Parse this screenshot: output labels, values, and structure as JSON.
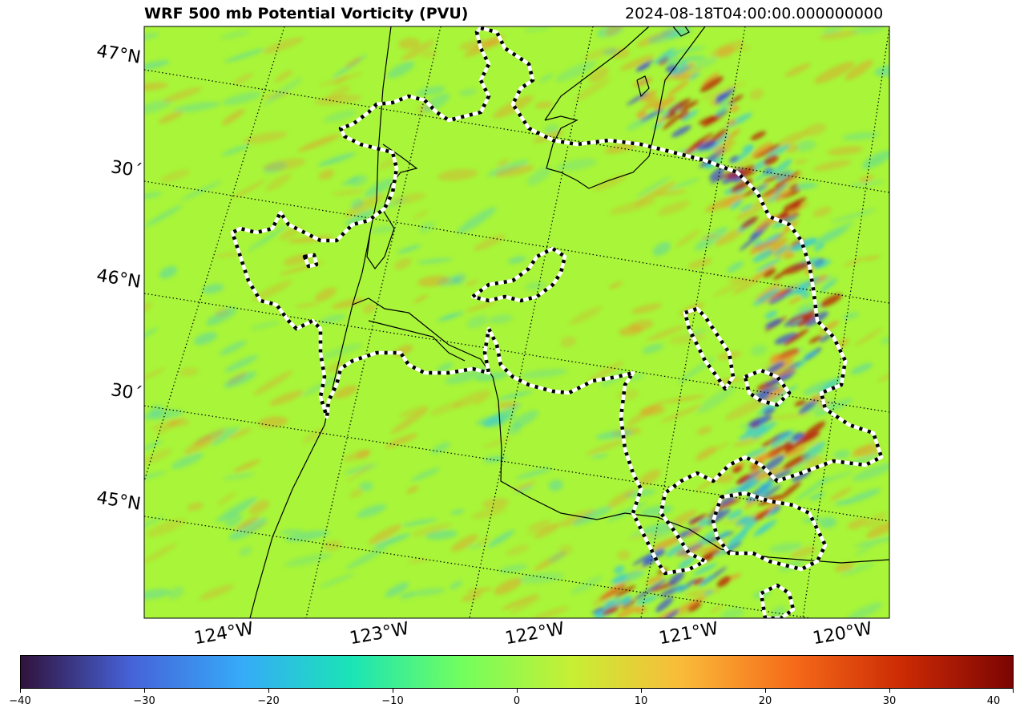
{
  "title": "WRF 500 mb Potential Vorticity (PVU)",
  "valid_time": "2024-08-18T04:00:00.000000000",
  "map": {
    "lat_labels": [
      "47°N",
      "30´",
      "46°N",
      "30´",
      "45°N"
    ],
    "lon_labels": [
      "124°W",
      "123°W",
      "122°W",
      "121°W",
      "120°W"
    ],
    "field_colors": {
      "background": "#a8f53a",
      "positive": "#f08a2a",
      "strong_positive": "#b81a08",
      "negative": "#30c8e0",
      "strong_negative": "#3a4ad8"
    }
  },
  "colorbar": {
    "min": -40,
    "max": 40,
    "ticks": [
      "−40",
      "−30",
      "−20",
      "−10",
      "0",
      "10",
      "20",
      "30",
      "40"
    ],
    "colors": [
      "#30123b",
      "#4662d7",
      "#36aaf9",
      "#1ae4b6",
      "#72fe5e",
      "#c7ef34",
      "#faba39",
      "#f66b19",
      "#cb2a04",
      "#7a0403"
    ]
  }
}
